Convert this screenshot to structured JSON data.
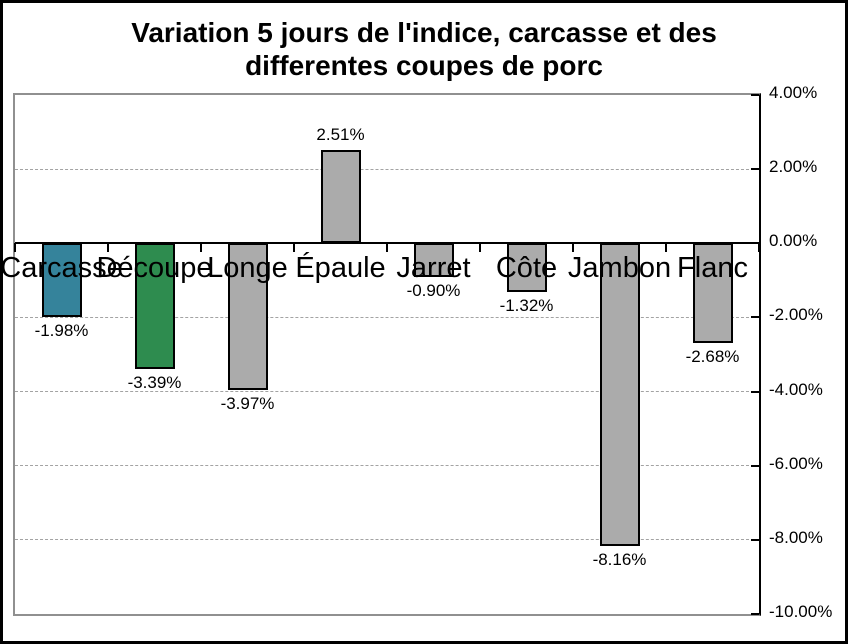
{
  "chart_data": {
    "type": "bar",
    "title_lines": [
      "Variation 5 jours de l'indice, carcasse et des",
      "differentes coupes de porc"
    ],
    "categories": [
      "Carcasse",
      "Découpe",
      "Longe",
      "Épaule",
      "Jarret",
      "Côte",
      "Jambon",
      "Flanc"
    ],
    "values": [
      -1.98,
      -3.39,
      -3.97,
      2.51,
      -0.9,
      -1.32,
      -8.16,
      -2.68
    ],
    "data_labels": [
      "-1.98%",
      "-3.39%",
      "-3.97%",
      "2.51%",
      "-0.90%",
      "-1.32%",
      "-8.16%",
      "-2.68%"
    ],
    "bar_colors": [
      "#35839B",
      "#2E8C4F",
      "#ABABAB",
      "#ABABAB",
      "#ABABAB",
      "#ABABAB",
      "#ABABAB",
      "#ABABAB"
    ],
    "xlabel": "",
    "ylabel": "",
    "y_axis": {
      "min": -10,
      "max": 4,
      "step": 2,
      "side": "right",
      "tick_labels": [
        "4.00%",
        "2.00%",
        "0.00%",
        "-2.00%",
        "-4.00%",
        "-6.00%",
        "-8.00%",
        "-10.00%"
      ]
    },
    "gridlines": {
      "style": "dashed",
      "values": [
        2,
        -2,
        -4,
        -6,
        -8
      ]
    },
    "legend": "none",
    "colors": {
      "bar_border": "#000000",
      "gridline": "#a3a3a3",
      "plot_border": "#909090",
      "axis_line": "#000000",
      "background": "#ffffff",
      "text": "#000000"
    }
  }
}
